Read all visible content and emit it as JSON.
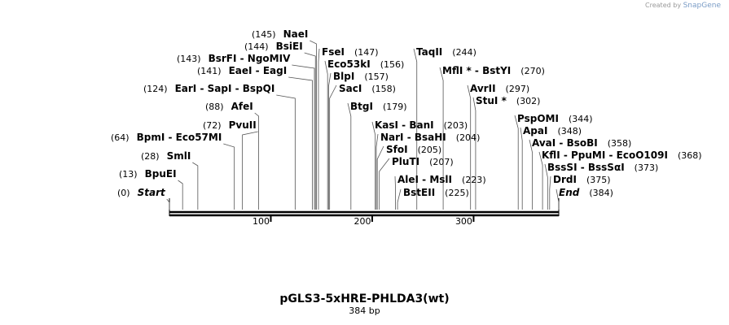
{
  "credit": {
    "prefix": "Created by",
    "brand": "SnapGene"
  },
  "title": "pGLS3-5xHRE-PHLDA3(wt)",
  "subtitle": "384 bp",
  "length": 384,
  "ruler_ticks": [
    100,
    200,
    300
  ],
  "features": [
    {
      "name": "NaeI",
      "position": 145
    },
    {
      "name": "BsiEI",
      "position": 144
    },
    {
      "name": "BsrFI  -  NgoMIV",
      "position": 143
    },
    {
      "name": "EaeI  -  EagI",
      "position": 141
    },
    {
      "name": "EarI  -  SapI  -  BspQI",
      "position": 124
    },
    {
      "name": "AfeI",
      "position": 88
    },
    {
      "name": "PvuII",
      "position": 72
    },
    {
      "name": "BpmI  -  Eco57MI",
      "position": 64
    },
    {
      "name": "SmlI",
      "position": 28
    },
    {
      "name": "BpuEI",
      "position": 13
    },
    {
      "name": "Start",
      "position": 0
    },
    {
      "name": "FseI",
      "position": 147
    },
    {
      "name": "Eco53kI",
      "position": 156
    },
    {
      "name": "BlpI",
      "position": 157
    },
    {
      "name": "SacI",
      "position": 158
    },
    {
      "name": "BtgI",
      "position": 179
    },
    {
      "name": "TaqII",
      "position": 244
    },
    {
      "name": "MflI *  -  BstYI",
      "position": 270
    },
    {
      "name": "AvrII",
      "position": 297
    },
    {
      "name": "StuI *",
      "position": 302
    },
    {
      "name": "KasI  -  BanI",
      "position": 203
    },
    {
      "name": "NarI  -  BsaHI",
      "position": 204
    },
    {
      "name": "SfoI",
      "position": 205
    },
    {
      "name": "PluTI",
      "position": 207
    },
    {
      "name": "AleI  -  MslI",
      "position": 223
    },
    {
      "name": "BstEII",
      "position": 225
    },
    {
      "name": "PspOMI",
      "position": 344
    },
    {
      "name": "ApaI",
      "position": 348
    },
    {
      "name": "AvaI  -  BsoBI",
      "position": 358
    },
    {
      "name": "KflI  -  PpuMI  -  EcoO109I",
      "position": 368
    },
    {
      "name": "BssSI  -  BssSαI",
      "position": 373
    },
    {
      "name": "DrdI",
      "position": 375
    },
    {
      "name": "End",
      "position": 384
    }
  ]
}
